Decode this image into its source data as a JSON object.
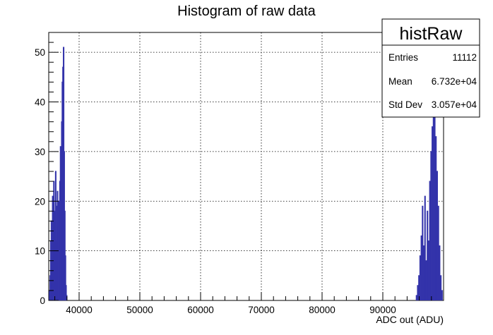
{
  "chart_data": {
    "type": "bar",
    "title": "Histogram of raw data",
    "xlabel": "ADC out (ADU)",
    "ylabel": "",
    "xlim": [
      35000,
      100000
    ],
    "ylim": [
      0,
      54
    ],
    "x_ticks": [
      40000,
      50000,
      60000,
      70000,
      80000,
      90000
    ],
    "y_ticks": [
      0,
      10,
      20,
      30,
      40,
      50
    ],
    "grid": true,
    "line_color": "#3333aa",
    "stats_box": {
      "name": "histRaw",
      "placement": "top-right",
      "rows": [
        {
          "label": "Entries",
          "value": "11112"
        },
        {
          "label": "Mean",
          "value": "6.732e+04"
        },
        {
          "label": "Std Dev",
          "value": "3.057e+04"
        }
      ]
    },
    "series": [
      {
        "name": "histRaw",
        "bin_width": 100,
        "bins": [
          [
            35100,
            2
          ],
          [
            35200,
            5
          ],
          [
            35300,
            12
          ],
          [
            35400,
            16
          ],
          [
            35500,
            8
          ],
          [
            35600,
            21
          ],
          [
            35700,
            14
          ],
          [
            35800,
            24
          ],
          [
            35900,
            10
          ],
          [
            36000,
            18
          ],
          [
            36100,
            26
          ],
          [
            36200,
            12
          ],
          [
            36300,
            19
          ],
          [
            36400,
            22
          ],
          [
            36500,
            15
          ],
          [
            36600,
            20
          ],
          [
            36700,
            17
          ],
          [
            36800,
            24
          ],
          [
            36900,
            31
          ],
          [
            37000,
            27
          ],
          [
            37100,
            36
          ],
          [
            37200,
            44
          ],
          [
            37300,
            47
          ],
          [
            37400,
            51
          ],
          [
            37500,
            30
          ],
          [
            37600,
            18
          ],
          [
            37700,
            9
          ],
          [
            37800,
            3
          ],
          [
            37900,
            1
          ],
          [
            95500,
            1
          ],
          [
            95700,
            3
          ],
          [
            95900,
            5
          ],
          [
            96100,
            9
          ],
          [
            96300,
            13
          ],
          [
            96500,
            19
          ],
          [
            96700,
            11
          ],
          [
            96900,
            21
          ],
          [
            97100,
            8
          ],
          [
            97300,
            18
          ],
          [
            97500,
            12
          ],
          [
            97700,
            24
          ],
          [
            97900,
            30
          ],
          [
            98100,
            35
          ],
          [
            98300,
            38
          ],
          [
            98500,
            37
          ],
          [
            98700,
            33
          ],
          [
            98900,
            26
          ],
          [
            99100,
            19
          ],
          [
            99300,
            11
          ],
          [
            99500,
            5
          ],
          [
            99700,
            2
          ]
        ]
      }
    ]
  }
}
